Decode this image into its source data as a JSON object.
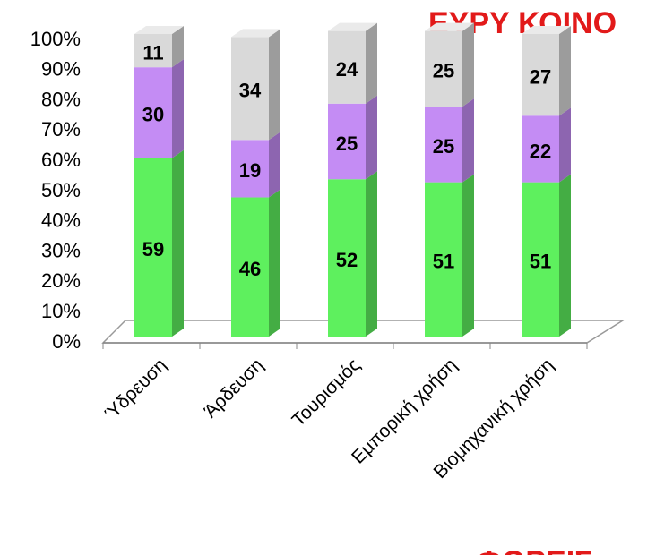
{
  "chart_data": {
    "type": "stacked-bar-3d",
    "annotations": [
      "ΕΥΡΥ ΚΟΙΝΟ",
      "ΦΟΡΕΙΣ"
    ],
    "categories": [
      "Ύδρευση",
      "Άρδευση",
      "Τουρισμός",
      "Εμπορική χρήση",
      "Βιομηχανική χρήση"
    ],
    "series": [
      {
        "color": "#5ef05e",
        "values": [
          59,
          46,
          52,
          51,
          51
        ]
      },
      {
        "color": "#c48cf4",
        "values": [
          30,
          19,
          25,
          25,
          22
        ]
      },
      {
        "color": "#d9d9d9",
        "values": [
          11,
          34,
          24,
          25,
          27
        ]
      }
    ],
    "ylim": [
      0,
      100
    ],
    "yticks": [
      {
        "value": 0,
        "label": "0%"
      },
      {
        "value": 10,
        "label": "10%"
      },
      {
        "value": 20,
        "label": "20%"
      },
      {
        "value": 30,
        "label": "30%"
      },
      {
        "value": 40,
        "label": "40%"
      },
      {
        "value": 50,
        "label": "50%"
      },
      {
        "value": 60,
        "label": "60%"
      },
      {
        "value": 70,
        "label": "70%"
      },
      {
        "value": 80,
        "label": "80%"
      },
      {
        "value": 90,
        "label": "90%"
      },
      {
        "value": 100,
        "label": "100%"
      }
    ]
  }
}
